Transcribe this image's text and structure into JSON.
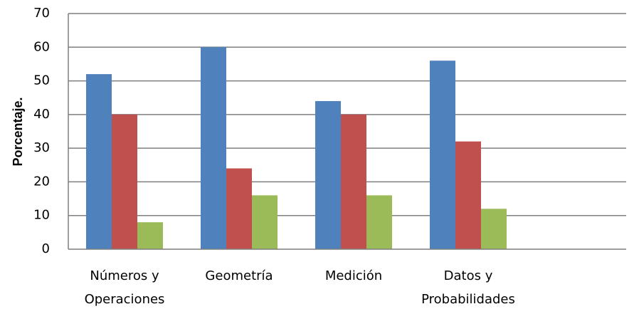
{
  "chart_data": {
    "type": "bar",
    "title": "",
    "xlabel": "",
    "ylabel": "Porcentaje.",
    "ylim": [
      0,
      70
    ],
    "yticks": [
      0,
      10,
      20,
      30,
      40,
      50,
      60,
      70
    ],
    "grid": true,
    "legend": "none",
    "categories": [
      [
        "Números y",
        "Operaciones"
      ],
      [
        "Geometría"
      ],
      [
        "Medición"
      ],
      [
        "Datos y",
        "Probabilidades"
      ]
    ],
    "series": [
      {
        "color": "#4f81bd",
        "values": [
          52,
          60,
          44,
          56
        ]
      },
      {
        "color": "#c0504d",
        "values": [
          40,
          24,
          40,
          32
        ]
      },
      {
        "color": "#9bbb59",
        "values": [
          8,
          16,
          16,
          12
        ]
      }
    ]
  }
}
